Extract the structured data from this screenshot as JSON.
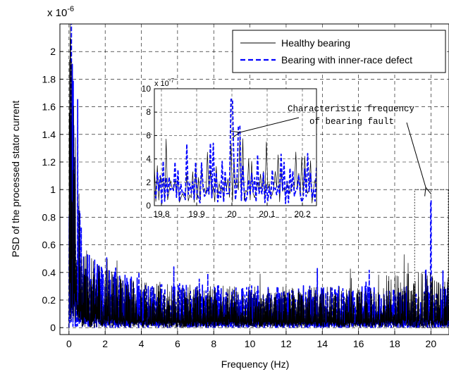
{
  "chart_data": {
    "type": "line",
    "main": {
      "xlabel": "Frequency (Hz)",
      "ylabel": "PSD of the processed stator current",
      "y_exponent_label": "x 10",
      "y_exponent_power": "-6",
      "xlim": [
        -0.5,
        21
      ],
      "ylim": [
        -0.05,
        2.2
      ],
      "xticks": [
        0,
        2,
        4,
        6,
        8,
        10,
        12,
        14,
        16,
        18,
        20
      ],
      "xtick_labels": [
        "0",
        "2",
        "4",
        "6",
        "8",
        "10",
        "12",
        "14",
        "16",
        "18",
        "20"
      ],
      "yticks": [
        0,
        0.2,
        0.4,
        0.6,
        0.8,
        1,
        1.2,
        1.4,
        1.6,
        1.8,
        2
      ],
      "ytick_labels": [
        "0",
        "0.2",
        "0.4",
        "0.6",
        "0.8",
        "1",
        "1.2",
        "1.4",
        "1.6",
        "1.8",
        "2"
      ],
      "grid": true,
      "legend_position": "top-right",
      "series": [
        {
          "name": "Healthy bearing",
          "color": "#000000",
          "style": "solid"
        },
        {
          "name": "Bearing with inner-race defect",
          "color": "#0000ff",
          "style": "dashed"
        }
      ],
      "peak_at_20hz": 0.92,
      "highlight_box_x": [
        19.1,
        21
      ],
      "highlight_box_y": [
        0,
        1.0
      ]
    },
    "inset": {
      "y_exponent_label": "x 10",
      "y_exponent_power": "-7",
      "xlim": [
        19.78,
        20.24
      ],
      "ylim": [
        0,
        10
      ],
      "xticks": [
        19.8,
        19.9,
        20,
        20.1,
        20.2
      ],
      "xtick_labels": [
        "19.8",
        "19.9",
        "20",
        "20.1",
        "20.2"
      ],
      "yticks": [
        0,
        2,
        4,
        6,
        8,
        10
      ],
      "ytick_labels": [
        "0",
        "2",
        "4",
        "6",
        "8",
        "10"
      ],
      "grid": true,
      "blue_peak_x": 20.0,
      "blue_peak_value": 9.1,
      "blue_second_peak_value": 6.8
    },
    "annotation": {
      "line1": "Characteristic frequency",
      "line2": "of bearing fault"
    }
  },
  "colors": {
    "healthy": "#000000",
    "defect": "#0000ff",
    "grid": "#000000"
  }
}
